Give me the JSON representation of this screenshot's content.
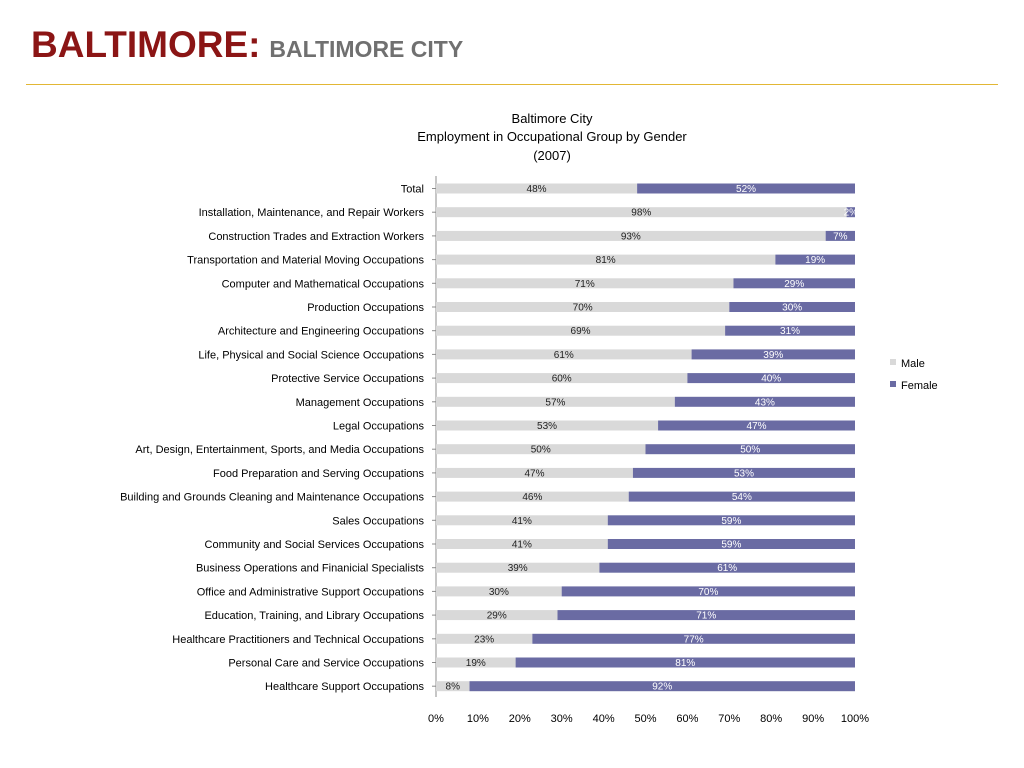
{
  "slide": {
    "title_main": "BALTIMORE:",
    "title_sub": "BALTIMORE CITY"
  },
  "colors": {
    "title": "#8b1515",
    "subtitle": "#707070",
    "rule": "#e2b735",
    "male": "#d9d9d9",
    "female": "#6a6ba3"
  },
  "chart_data": {
    "type": "bar",
    "orientation": "horizontal",
    "stacked": "percent",
    "title_lines": [
      "Baltimore City",
      "Employment in Occupational Group by Gender",
      "(2007)"
    ],
    "categories": [
      "Total",
      "Installation, Maintenance,  and Repair Workers",
      "Construction Trades and Extraction Workers",
      "Transportation  and Material Moving Occupations",
      "Computer and Mathematical Occupations",
      "Production Occupations",
      "Architecture and Engineering  Occupations",
      "Life, Physical  and Social Science  Occupations",
      "Protective Service  Occupations",
      "Management Occupations",
      "Legal Occupations",
      "Art, Design,  Entertainment, Sports,  and Media Occupations",
      "Food Preparation and Serving Occupations",
      "Building and Grounds  Cleaning and Maintenance Occupations",
      "Sales Occupations",
      "Community and Social Services  Occupations",
      "Business Operations  and Finanicial Specialists",
      "Office and Administrative Support  Occupations",
      "Education, Training,  and Library  Occupations",
      "Healthcare Practitioners  and Technical  Occupations",
      "Personal Care and Service Occupations",
      "Healthcare Support  Occupations"
    ],
    "series": [
      {
        "name": "Male",
        "color": "#d9d9d9",
        "values": [
          48,
          98,
          93,
          81,
          71,
          70,
          69,
          61,
          60,
          57,
          53,
          50,
          47,
          46,
          41,
          41,
          39,
          30,
          29,
          23,
          19,
          8
        ]
      },
      {
        "name": "Female",
        "color": "#6a6ba3",
        "values": [
          52,
          2,
          7,
          19,
          29,
          30,
          31,
          39,
          40,
          43,
          47,
          50,
          53,
          54,
          59,
          59,
          61,
          70,
          71,
          77,
          81,
          92
        ]
      }
    ],
    "xticks": [
      "0%",
      "10%",
      "20%",
      "30%",
      "40%",
      "50%",
      "60%",
      "70%",
      "80%",
      "90%",
      "100%"
    ],
    "xlim": [
      0,
      100
    ],
    "legend_position": "right",
    "grid": false
  }
}
